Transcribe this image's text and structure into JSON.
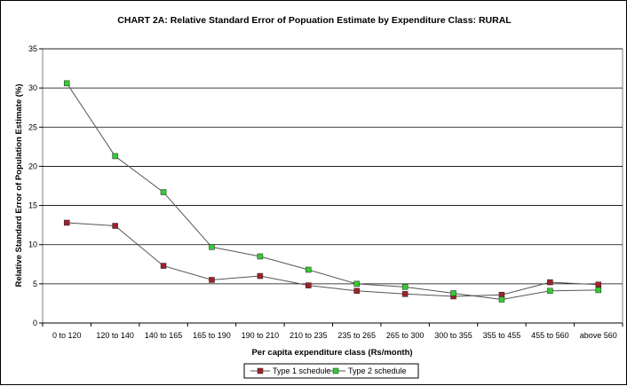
{
  "chart_data": {
    "type": "line",
    "title": "CHART 2A: Relative Standard Error of Popuation Estimate by Expenditure Class: RURAL",
    "xlabel": "Per capita expenditure class (Rs/month)",
    "ylabel": "Relative Standard Error of Population Estimate (%)",
    "ylim": [
      0,
      35
    ],
    "yticks": [
      0,
      5,
      10,
      15,
      20,
      25,
      30,
      35
    ],
    "grid": "horizontal",
    "legend_position": "bottom",
    "categories": [
      "0 to 120",
      "120 to 140",
      "140 to 165",
      "165 to 190",
      "190 to 210",
      "210 to 235",
      "235 to 265",
      "265 to 300",
      "300 to 355",
      "355 to 455",
      "455 to 560",
      "above 560"
    ],
    "series": [
      {
        "name": "Type 1 schedule",
        "color": "#a0202a",
        "values": [
          12.8,
          12.4,
          7.3,
          5.5,
          6.0,
          4.8,
          4.1,
          3.7,
          3.4,
          3.6,
          5.2,
          4.9
        ]
      },
      {
        "name": "Type 2 schedule",
        "color": "#33cc33",
        "values": [
          30.6,
          21.3,
          16.7,
          9.7,
          8.5,
          6.8,
          5.0,
          4.6,
          3.8,
          3.0,
          4.1,
          4.2
        ]
      }
    ]
  }
}
